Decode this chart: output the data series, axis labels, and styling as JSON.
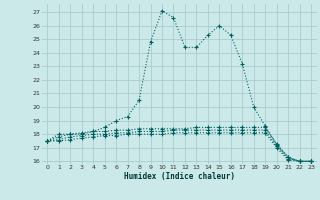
{
  "xlabel": "Humidex (Indice chaleur)",
  "bg_color": "#cce9e9",
  "grid_color": "#aacccc",
  "line_color": "#005f5f",
  "xlim": [
    -0.5,
    23.5
  ],
  "ylim": [
    15.8,
    27.6
  ],
  "yticks": [
    16,
    17,
    18,
    19,
    20,
    21,
    22,
    23,
    24,
    25,
    26,
    27
  ],
  "xticks": [
    0,
    1,
    2,
    3,
    4,
    5,
    6,
    7,
    8,
    9,
    10,
    11,
    12,
    13,
    14,
    15,
    16,
    17,
    18,
    19,
    20,
    21,
    22,
    23
  ],
  "series": [
    {
      "x": [
        0,
        1,
        2,
        3,
        4,
        5,
        6,
        7,
        8,
        9,
        10,
        11,
        12,
        13,
        14,
        15,
        16,
        17,
        18,
        19,
        20,
        21,
        22,
        23
      ],
      "y": [
        17.5,
        18.0,
        18.0,
        18.0,
        18.2,
        18.5,
        19.0,
        19.3,
        20.5,
        24.8,
        27.1,
        26.6,
        24.4,
        24.4,
        25.3,
        26.0,
        25.3,
        23.2,
        20.0,
        18.6,
        17.2,
        16.3,
        16.0,
        16.0
      ]
    },
    {
      "x": [
        0,
        1,
        2,
        3,
        4,
        5,
        6,
        7,
        8,
        9,
        10,
        11,
        12,
        13,
        14,
        15,
        16,
        17,
        18,
        19,
        20,
        21,
        22,
        23
      ],
      "y": [
        17.5,
        17.8,
        18.0,
        18.1,
        18.2,
        18.2,
        18.3,
        18.3,
        18.4,
        18.4,
        18.4,
        18.4,
        18.4,
        18.5,
        18.5,
        18.5,
        18.5,
        18.5,
        18.5,
        18.5,
        17.3,
        16.3,
        16.0,
        16.0
      ]
    },
    {
      "x": [
        0,
        1,
        2,
        3,
        4,
        5,
        6,
        7,
        8,
        9,
        10,
        11,
        12,
        13,
        14,
        15,
        16,
        17,
        18,
        19,
        20,
        21,
        22,
        23
      ],
      "y": [
        17.5,
        17.6,
        17.8,
        17.9,
        18.0,
        18.0,
        18.1,
        18.1,
        18.2,
        18.2,
        18.2,
        18.3,
        18.3,
        18.3,
        18.3,
        18.3,
        18.3,
        18.3,
        18.3,
        18.3,
        17.1,
        16.2,
        16.0,
        16.0
      ]
    },
    {
      "x": [
        0,
        1,
        2,
        3,
        4,
        5,
        6,
        7,
        8,
        9,
        10,
        11,
        12,
        13,
        14,
        15,
        16,
        17,
        18,
        19,
        20,
        21,
        22,
        23
      ],
      "y": [
        17.5,
        17.5,
        17.6,
        17.7,
        17.8,
        17.9,
        17.9,
        18.0,
        18.0,
        18.0,
        18.0,
        18.1,
        18.1,
        18.1,
        18.1,
        18.1,
        18.1,
        18.1,
        18.1,
        18.1,
        17.0,
        16.1,
        16.0,
        16.0
      ]
    }
  ]
}
